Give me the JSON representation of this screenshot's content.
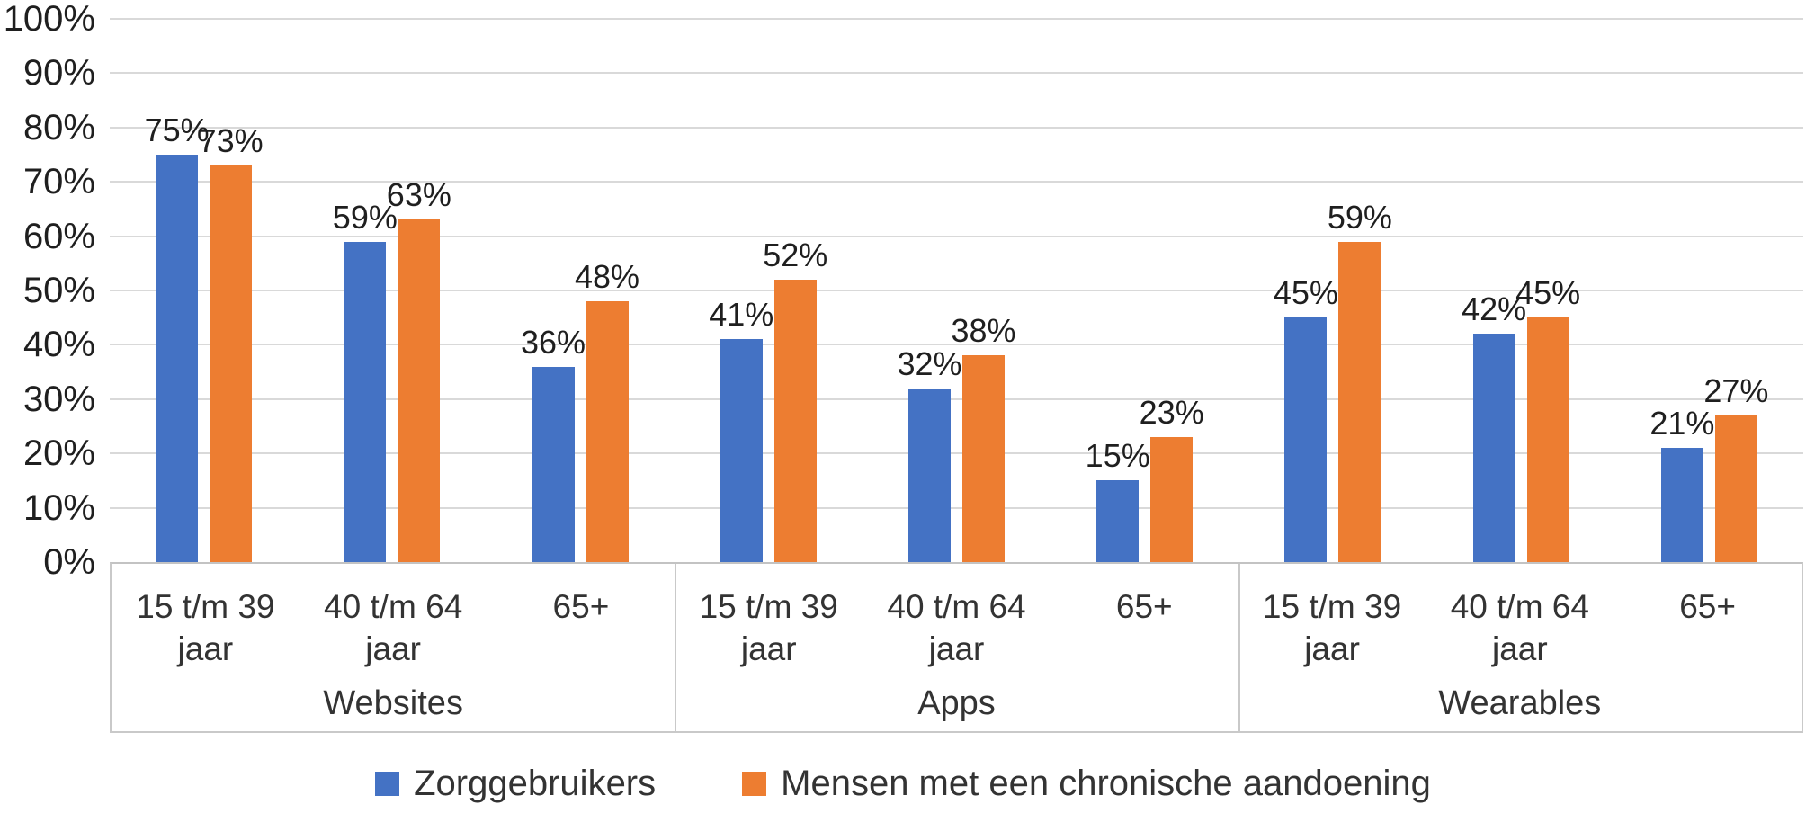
{
  "chart_data": {
    "type": "bar",
    "title": "",
    "grid": true,
    "legend_position": "bottom",
    "data_label_suffix": "%",
    "y_axis": {
      "min": 0,
      "max": 100,
      "step": 10,
      "tick_labels": [
        "0%",
        "10%",
        "20%",
        "30%",
        "40%",
        "50%",
        "60%",
        "70%",
        "80%",
        "90%",
        "100%"
      ]
    },
    "x_axis": {
      "categories": [
        {
          "label": "Websites",
          "groups": [
            {
              "lines": [
                "15 t/m 39",
                "jaar"
              ]
            },
            {
              "lines": [
                "40 t/m 64",
                "jaar"
              ]
            },
            {
              "lines": [
                "65+"
              ]
            }
          ]
        },
        {
          "label": "Apps",
          "groups": [
            {
              "lines": [
                "15 t/m 39",
                "jaar"
              ]
            },
            {
              "lines": [
                "40 t/m 64",
                "jaar"
              ]
            },
            {
              "lines": [
                "65+"
              ]
            }
          ]
        },
        {
          "label": "Wearables",
          "groups": [
            {
              "lines": [
                "15 t/m 39",
                "jaar"
              ]
            },
            {
              "lines": [
                "40 t/m 64",
                "jaar"
              ]
            },
            {
              "lines": [
                "65+"
              ]
            }
          ]
        }
      ]
    },
    "series": [
      {
        "name": "Zorggebruikers",
        "color": "#4472C4",
        "values": [
          75,
          59,
          36,
          41,
          32,
          15,
          45,
          42,
          21
        ],
        "data_labels": [
          "75%",
          "59%",
          "36%",
          "41%",
          "32%",
          "15%",
          "45%",
          "42%",
          "21%"
        ]
      },
      {
        "name": "Mensen met een chronische aandoening",
        "color": "#ED7D31",
        "values": [
          73,
          63,
          48,
          52,
          38,
          23,
          59,
          45,
          27
        ],
        "data_labels": [
          "73%",
          "63%",
          "48%",
          "52%",
          "38%",
          "23%",
          "59%",
          "45%",
          "27%"
        ]
      }
    ],
    "colors": {
      "gridline": "#D9D9D9",
      "axis_line": "#C9C9C9",
      "text": "#1F1F1F"
    }
  }
}
